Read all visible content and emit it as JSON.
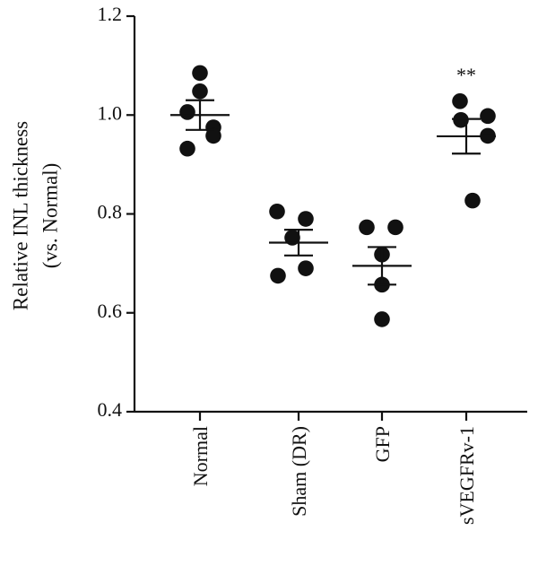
{
  "chart_data": {
    "type": "scatter",
    "title": "",
    "xlabel": "",
    "ylabel": "Relative INL thickness (vs. Normal)",
    "ylabel_lines": [
      "Relative INL thickness",
      "(vs. Normal)"
    ],
    "ylim": [
      0.4,
      1.2
    ],
    "yticks": [
      "0.4",
      "0.6",
      "0.8",
      "1.0",
      "1.2"
    ],
    "grid": false,
    "categories": [
      "Normal",
      "Sham (DR)",
      "GFP",
      "sVEGFRv-1"
    ],
    "groups": [
      {
        "category": "Normal",
        "points": [
          1.085,
          1.048,
          1.006,
          0.975,
          0.958,
          0.932
        ],
        "mean": 1.0,
        "sem_upper": 1.03,
        "sem_lower": 0.97,
        "annotation": ""
      },
      {
        "category": "Sham (DR)",
        "points": [
          0.805,
          0.79,
          0.752,
          0.69,
          0.675
        ],
        "mean": 0.742,
        "sem_upper": 0.768,
        "sem_lower": 0.716,
        "annotation": ""
      },
      {
        "category": "GFP",
        "points": [
          0.773,
          0.773,
          0.718,
          0.657,
          0.587
        ],
        "mean": 0.695,
        "sem_upper": 0.733,
        "sem_lower": 0.657,
        "annotation": ""
      },
      {
        "category": "sVEGFRv-1",
        "points": [
          1.028,
          0.998,
          0.99,
          0.958,
          0.827
        ],
        "mean": 0.957,
        "sem_upper": 0.992,
        "sem_lower": 0.922,
        "annotation": "**"
      }
    ]
  }
}
